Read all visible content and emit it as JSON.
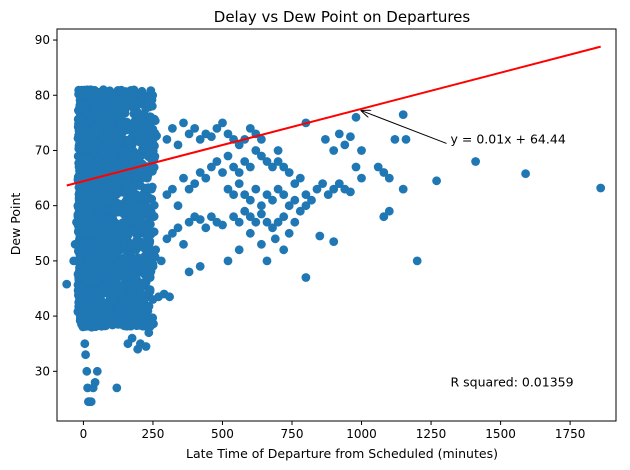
{
  "chart_data": {
    "type": "scatter",
    "title": "Delay vs Dew Point on Departures",
    "xlabel": "Late Time of Departure from Scheduled (minutes)",
    "ylabel": "Dew Point",
    "xlim": [
      -95,
      1915
    ],
    "ylim": [
      21,
      92
    ],
    "xticks": [
      0,
      250,
      500,
      750,
      1000,
      1250,
      1500,
      1750
    ],
    "yticks": [
      30,
      40,
      50,
      60,
      70,
      80,
      90
    ],
    "grid": false,
    "point_color": "#1f77b4",
    "regression": {
      "equation_label": "y = 0.01x + 64.44",
      "slope": 0.0131,
      "intercept": 64.44,
      "x_range": [
        -60,
        1860
      ],
      "color": "#ff0000",
      "arrow_from": [
        1320,
        72
      ],
      "arrow_to": [
        1000,
        77.2
      ]
    },
    "r_squared_label": "R squared: 0.01359",
    "r_squared_position": [
      1320,
      28
    ],
    "series": [
      {
        "points": [
          [
            -60,
            45.8
          ],
          [
            -35,
            50
          ],
          [
            -30,
            53
          ],
          [
            -25,
            57
          ],
          [
            -20,
            60
          ],
          [
            -15,
            61
          ],
          [
            -10,
            65
          ],
          [
            -5,
            63
          ],
          [
            0,
            59
          ],
          [
            5,
            35
          ],
          [
            8,
            33
          ],
          [
            12,
            30
          ],
          [
            15,
            27
          ],
          [
            18,
            24.5
          ],
          [
            22,
            24.5
          ],
          [
            28,
            24.5
          ],
          [
            35,
            27
          ],
          [
            42,
            28
          ],
          [
            50,
            30
          ],
          [
            10,
            40
          ],
          [
            20,
            42
          ],
          [
            30,
            38
          ],
          [
            45,
            39
          ],
          [
            55,
            41
          ],
          [
            65,
            38.5
          ],
          [
            75,
            40
          ],
          [
            90,
            42
          ],
          [
            100,
            39
          ],
          [
            110,
            43
          ],
          [
            125,
            38.5
          ],
          [
            140,
            44
          ],
          [
            160,
            35
          ],
          [
            175,
            36
          ],
          [
            195,
            34
          ],
          [
            205,
            35
          ],
          [
            225,
            34.5
          ],
          [
            235,
            37
          ],
          [
            120,
            27
          ],
          [
            150,
            43
          ],
          [
            170,
            45
          ],
          [
            190,
            42
          ],
          [
            210,
            44
          ],
          [
            230,
            40
          ],
          [
            250,
            43
          ],
          [
            270,
            43.5
          ],
          [
            290,
            44
          ],
          [
            310,
            43.5
          ],
          [
            180,
            48
          ],
          [
            200,
            50
          ],
          [
            220,
            49
          ],
          [
            240,
            47
          ],
          [
            260,
            52
          ],
          [
            280,
            50
          ],
          [
            300,
            54
          ],
          [
            320,
            55
          ],
          [
            340,
            56
          ],
          [
            360,
            53
          ],
          [
            380,
            57
          ],
          [
            400,
            58
          ],
          [
            420,
            57.5
          ],
          [
            440,
            56
          ],
          [
            460,
            58
          ],
          [
            480,
            57
          ],
          [
            500,
            56.5
          ],
          [
            300,
            62
          ],
          [
            320,
            63
          ],
          [
            340,
            60
          ],
          [
            360,
            65
          ],
          [
            380,
            63
          ],
          [
            400,
            64
          ],
          [
            420,
            66
          ],
          [
            440,
            65
          ],
          [
            460,
            67
          ],
          [
            480,
            68
          ],
          [
            500,
            66
          ],
          [
            520,
            69
          ],
          [
            540,
            67
          ],
          [
            560,
            66
          ],
          [
            580,
            68
          ],
          [
            600,
            67
          ],
          [
            620,
            70
          ],
          [
            640,
            69
          ],
          [
            660,
            68
          ],
          [
            680,
            67
          ],
          [
            700,
            68
          ],
          [
            300,
            72
          ],
          [
            320,
            74
          ],
          [
            340,
            71
          ],
          [
            360,
            75
          ],
          [
            380,
            73
          ],
          [
            400,
            74
          ],
          [
            420,
            72
          ],
          [
            440,
            73
          ],
          [
            460,
            72.5
          ],
          [
            480,
            74
          ],
          [
            500,
            75
          ],
          [
            520,
            73
          ],
          [
            540,
            72
          ],
          [
            560,
            71
          ],
          [
            580,
            72
          ],
          [
            600,
            74
          ],
          [
            620,
            73
          ],
          [
            640,
            72
          ],
          [
            700,
            70
          ],
          [
            720,
            67
          ],
          [
            740,
            66
          ],
          [
            760,
            64
          ],
          [
            780,
            65
          ],
          [
            800,
            62
          ],
          [
            820,
            61
          ],
          [
            840,
            63
          ],
          [
            860,
            64
          ],
          [
            880,
            62
          ],
          [
            900,
            63
          ],
          [
            920,
            64
          ],
          [
            940,
            63
          ],
          [
            960,
            62.5
          ],
          [
            520,
            63
          ],
          [
            540,
            62
          ],
          [
            560,
            64
          ],
          [
            580,
            62
          ],
          [
            600,
            61
          ],
          [
            620,
            63
          ],
          [
            640,
            60
          ],
          [
            660,
            62
          ],
          [
            680,
            61
          ],
          [
            700,
            63
          ],
          [
            720,
            62
          ],
          [
            740,
            60
          ],
          [
            760,
            61
          ],
          [
            780,
            59
          ],
          [
            800,
            60
          ],
          [
            540,
            58
          ],
          [
            560,
            57
          ],
          [
            580,
            59
          ],
          [
            600,
            58
          ],
          [
            620,
            57
          ],
          [
            640,
            58.5
          ],
          [
            660,
            57
          ],
          [
            680,
            56
          ],
          [
            700,
            57
          ],
          [
            720,
            58
          ],
          [
            740,
            55
          ],
          [
            760,
            57
          ],
          [
            380,
            48
          ],
          [
            420,
            49
          ],
          [
            520,
            50
          ],
          [
            560,
            52
          ],
          [
            600,
            55
          ],
          [
            640,
            53
          ],
          [
            660,
            50
          ],
          [
            690,
            54
          ],
          [
            720,
            52
          ],
          [
            800,
            47
          ],
          [
            850,
            54.5
          ],
          [
            900,
            53.5
          ],
          [
            800,
            75
          ],
          [
            870,
            72
          ],
          [
            900,
            70
          ],
          [
            920,
            73
          ],
          [
            940,
            71
          ],
          [
            960,
            72.5
          ],
          [
            980,
            76
          ],
          [
            1000,
            70
          ],
          [
            980,
            67
          ],
          [
            1000,
            65
          ],
          [
            1060,
            67
          ],
          [
            1080,
            66
          ],
          [
            1100,
            65
          ],
          [
            1080,
            58
          ],
          [
            1100,
            59
          ],
          [
            1120,
            72
          ],
          [
            1150,
            76.5
          ],
          [
            1160,
            72
          ],
          [
            1150,
            63
          ],
          [
            1200,
            50
          ],
          [
            1270,
            64.5
          ],
          [
            1410,
            68
          ],
          [
            1590,
            65.8
          ],
          [
            1860,
            63.2
          ]
        ]
      }
    ]
  }
}
